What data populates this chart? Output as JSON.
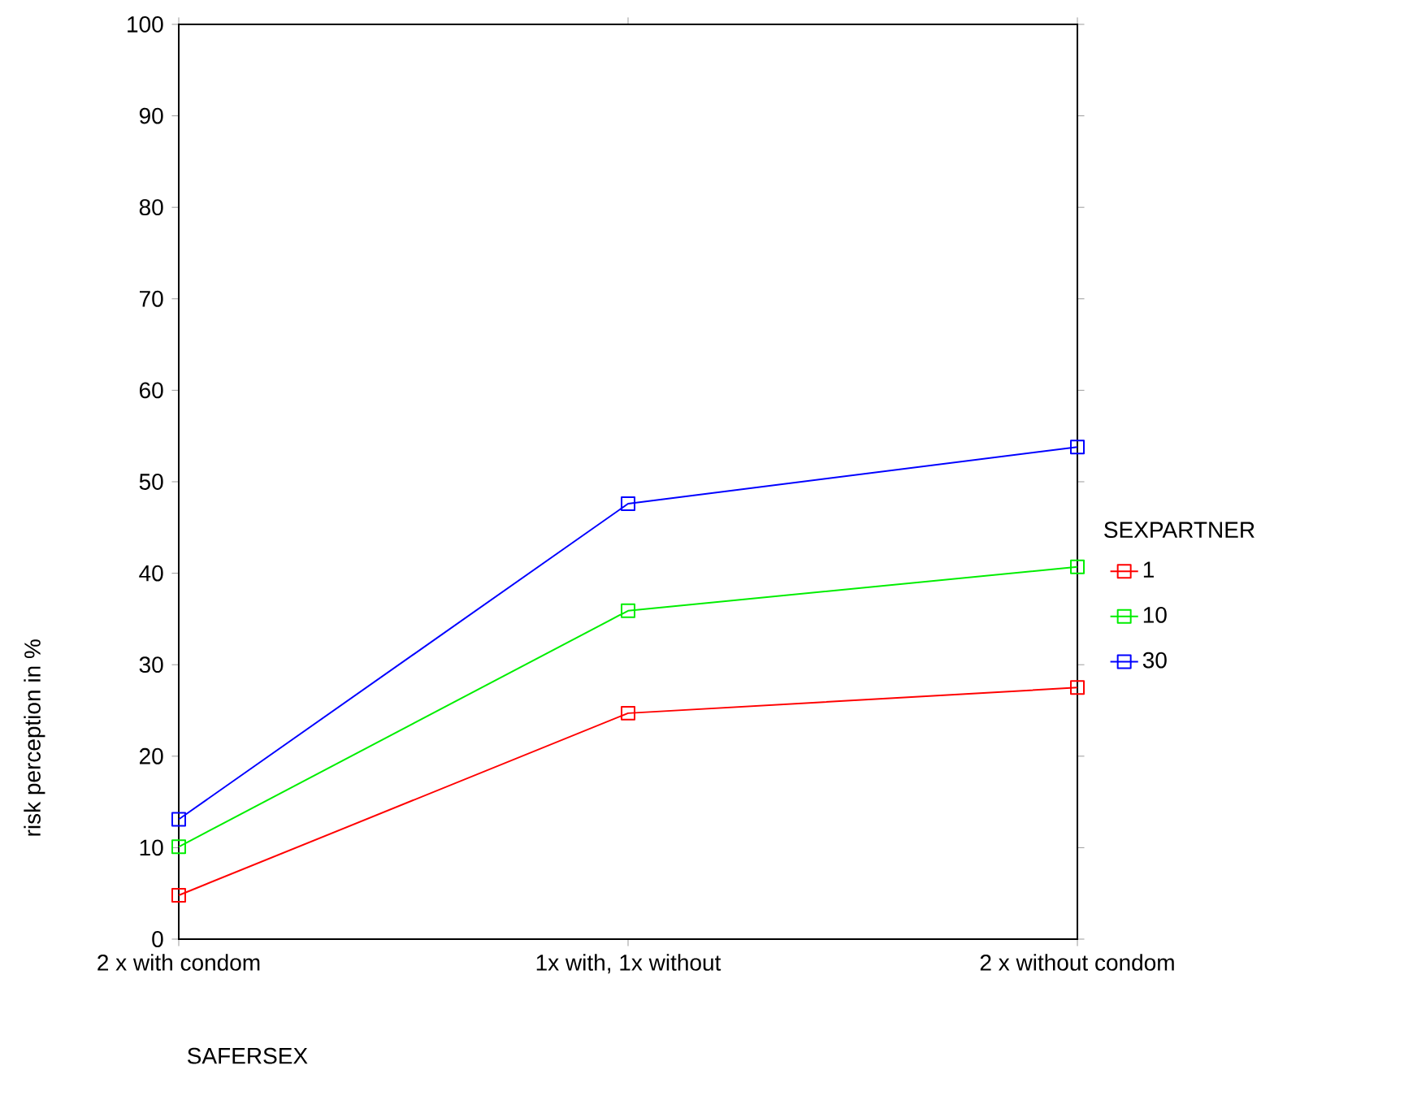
{
  "chart_data": {
    "type": "line",
    "xlabel": "SAFERSEX",
    "ylabel": "risk perception in %",
    "legend_title": "SEXPARTNER",
    "categories": [
      "2 x with condom",
      "1x with, 1x without",
      "2 x without condom"
    ],
    "series": [
      {
        "name": "1",
        "color": "#ff0000",
        "values": [
          4.8,
          24.7,
          27.5
        ]
      },
      {
        "name": "10",
        "color": "#00ee00",
        "values": [
          10.1,
          35.9,
          40.7
        ]
      },
      {
        "name": "30",
        "color": "#0000ff",
        "values": [
          13.1,
          47.6,
          53.8
        ]
      }
    ],
    "ylim": [
      0,
      100
    ],
    "yticks": [
      0,
      10,
      20,
      30,
      40,
      50,
      60,
      70,
      80,
      90,
      100
    ],
    "grid": false,
    "legend": "right",
    "marker": "square",
    "line_style": "solid"
  }
}
